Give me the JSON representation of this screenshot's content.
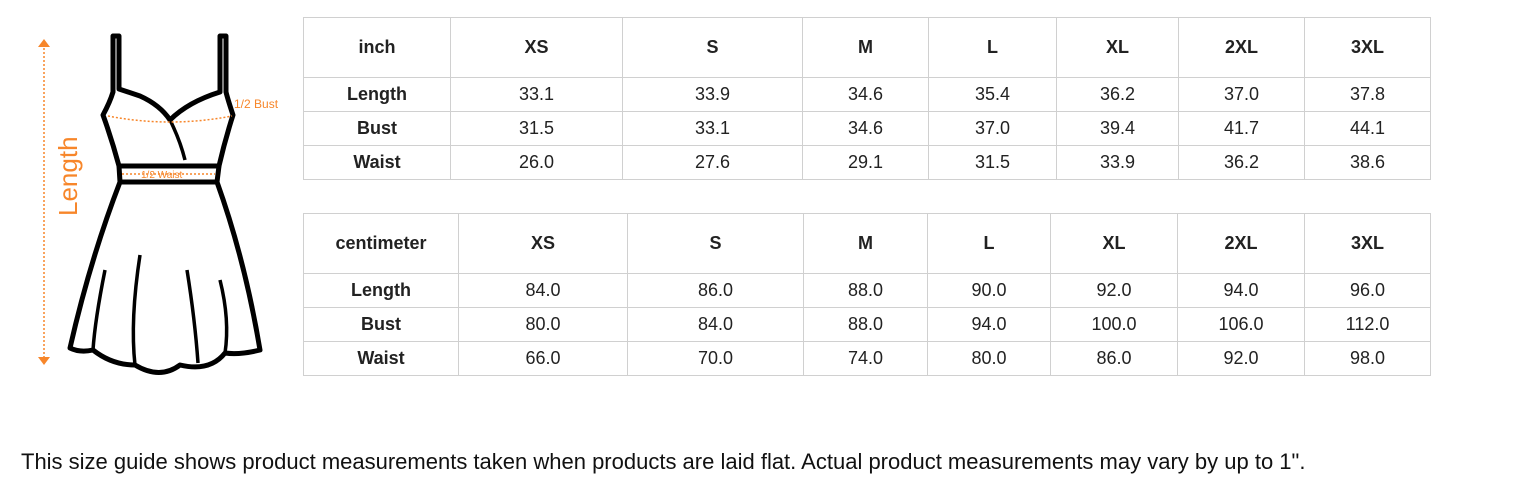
{
  "figure": {
    "length_label": "Length",
    "bust_label": "1/2 Bust",
    "waist_label": "1/2 Waist",
    "accent": "#f7862a"
  },
  "sizes": [
    "XS",
    "S",
    "M",
    "L",
    "XL",
    "2XL",
    "3XL"
  ],
  "tables": [
    {
      "unit": "inch",
      "rows": [
        {
          "label": "Length",
          "values": [
            "33.1",
            "33.9",
            "34.6",
            "35.4",
            "36.2",
            "37.0",
            "37.8"
          ]
        },
        {
          "label": "Bust",
          "values": [
            "31.5",
            "33.1",
            "34.6",
            "37.0",
            "39.4",
            "41.7",
            "44.1"
          ]
        },
        {
          "label": "Waist",
          "values": [
            "26.0",
            "27.6",
            "29.1",
            "31.5",
            "33.9",
            "36.2",
            "38.6"
          ]
        }
      ]
    },
    {
      "unit": "centimeter",
      "rows": [
        {
          "label": "Length",
          "values": [
            "84.0",
            "86.0",
            "88.0",
            "90.0",
            "92.0",
            "94.0",
            "96.0"
          ]
        },
        {
          "label": "Bust",
          "values": [
            "80.0",
            "84.0",
            "88.0",
            "94.0",
            "100.0",
            "106.0",
            "112.0"
          ]
        },
        {
          "label": "Waist",
          "values": [
            "66.0",
            "70.0",
            "74.0",
            "80.0",
            "86.0",
            "92.0",
            "98.0"
          ]
        }
      ]
    }
  ],
  "note": "This size guide shows product measurements taken when products are laid flat. Actual product measurements may vary by up to 1\"."
}
